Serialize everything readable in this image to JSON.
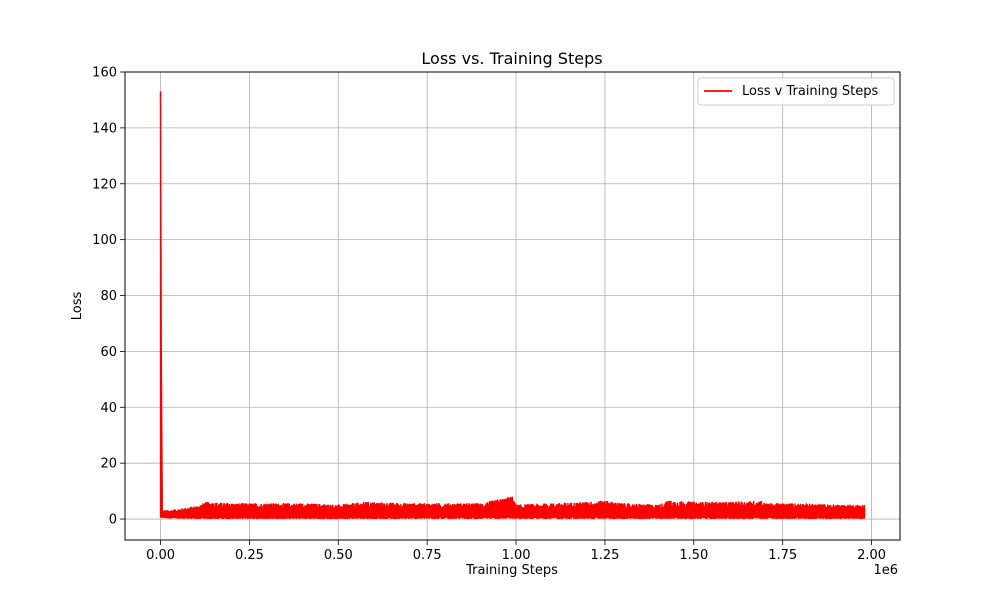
{
  "chart_data": {
    "type": "line",
    "title": "Loss vs. Training Steps",
    "xlabel": "Training Steps",
    "ylabel": "Loss",
    "x_offset_label": "1e6",
    "xlim": [
      -100000,
      2080000
    ],
    "ylim": [
      -7.5,
      160
    ],
    "x_ticks": [
      0,
      250000,
      500000,
      750000,
      1000000,
      1250000,
      1500000,
      1750000,
      2000000
    ],
    "x_tick_labels": [
      "0.00",
      "0.25",
      "0.50",
      "0.75",
      "1.00",
      "1.25",
      "1.50",
      "1.75",
      "2.00"
    ],
    "y_ticks": [
      0,
      20,
      40,
      60,
      80,
      100,
      120,
      140,
      160
    ],
    "y_tick_labels": [
      "0",
      "20",
      "40",
      "60",
      "80",
      "100",
      "120",
      "140",
      "160"
    ],
    "grid": true,
    "legend_position": "top-right",
    "series": [
      {
        "name": "Loss v Training Steps",
        "color": "#ff0000",
        "x": [
          0,
          2000,
          5000,
          10000,
          20000,
          50000,
          100000,
          130000,
          200000,
          300000,
          400000,
          500000,
          580000,
          700000,
          800000,
          900000,
          990000,
          1000000,
          1100000,
          1200000,
          1250000,
          1300000,
          1400000,
          1430000,
          1500000,
          1600000,
          1690000,
          1700000,
          1800000,
          1900000,
          1980000
        ],
        "y_min": [
          0.5,
          0.5,
          0.5,
          0.5,
          0.4,
          0.3,
          0.2,
          0.2,
          0.2,
          0.2,
          0.2,
          0.2,
          0.2,
          0.2,
          0.2,
          0.2,
          0.2,
          0.2,
          0.2,
          0.2,
          0.2,
          0.2,
          0.2,
          0.2,
          0.2,
          0.2,
          0.2,
          0.2,
          0.2,
          0.2,
          0.2
        ],
        "y_max": [
          153,
          60,
          3,
          3,
          3,
          3.5,
          4.5,
          6,
          5.5,
          5.5,
          5.5,
          5,
          6,
          5.5,
          5.5,
          5.5,
          8,
          5,
          5.5,
          6,
          6.5,
          5.5,
          5,
          6.5,
          6,
          6,
          6.5,
          5.5,
          5.5,
          5,
          5
        ]
      }
    ]
  }
}
